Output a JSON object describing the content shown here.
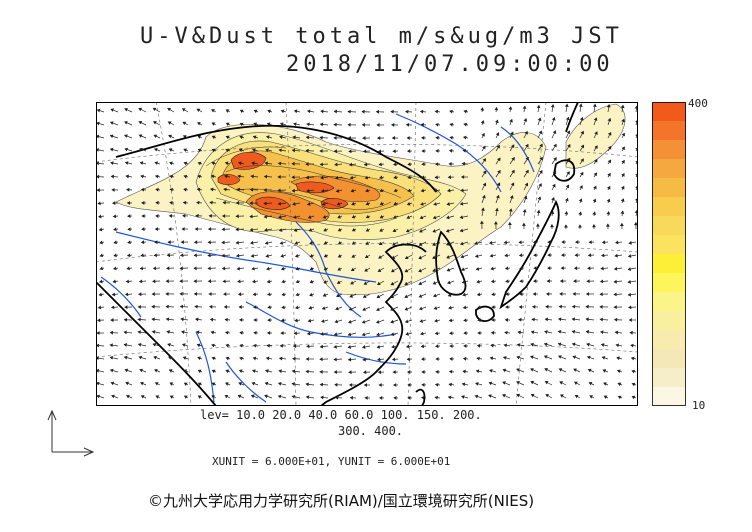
{
  "title": {
    "line1": "U-V&Dust total m/s&ug/m3 JST",
    "line2": "2018/11/07.09:00:00"
  },
  "colorbar": {
    "max_label": "400",
    "min_label": "10",
    "colors": [
      "#f25a1c",
      "#f3742b",
      "#f49036",
      "#f6a840",
      "#f6bb45",
      "#f8cc4d",
      "#f9d95b",
      "#fbe25f",
      "#fdef38",
      "#fdf55a",
      "#fbf489",
      "#f9f09f",
      "#f7ecae",
      "#f5e8b8",
      "#f6eec9",
      "#fbf7e3"
    ]
  },
  "legend": {
    "levels_line1": "lev= 10.0 20.0 40.0 60.0 100. 150. 200.",
    "levels_line2": "300. 400.",
    "units": "XUNIT = 6.000E+01, YUNIT = 6.000E+01"
  },
  "copyright": "©九州大学応用力学研究所(RIAM)/国立環境研究所(NIES)",
  "colors": {
    "coast": "#000000",
    "river": "#1f55e0",
    "arrow": "#222222",
    "dust_light": "#fbf3c3",
    "dust_mid": "#f9da6e",
    "dust_high": "#f39a3a",
    "dust_max": "#ef5a1e"
  }
}
